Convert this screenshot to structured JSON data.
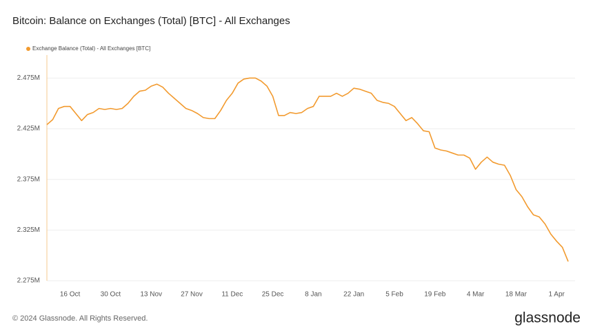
{
  "chart_data": {
    "type": "line",
    "title": "Bitcoin: Balance on Exchanges (Total) [BTC] - All Exchanges",
    "x": [
      "8 Oct",
      "10 Oct",
      "12 Oct",
      "14 Oct",
      "16 Oct",
      "18 Oct",
      "20 Oct",
      "22 Oct",
      "24 Oct",
      "26 Oct",
      "28 Oct",
      "30 Oct",
      "1 Nov",
      "3 Nov",
      "5 Nov",
      "7 Nov",
      "9 Nov",
      "11 Nov",
      "13 Nov",
      "15 Nov",
      "17 Nov",
      "19 Nov",
      "21 Nov",
      "23 Nov",
      "25 Nov",
      "27 Nov",
      "29 Nov",
      "1 Dec",
      "3 Dec",
      "5 Dec",
      "7 Dec",
      "9 Dec",
      "11 Dec",
      "13 Dec",
      "15 Dec",
      "17 Dec",
      "19 Dec",
      "21 Dec",
      "23 Dec",
      "25 Dec",
      "27 Dec",
      "29 Dec",
      "31 Dec",
      "2 Jan",
      "4 Jan",
      "6 Jan",
      "8 Jan",
      "10 Jan",
      "12 Jan",
      "14 Jan",
      "16 Jan",
      "18 Jan",
      "20 Jan",
      "22 Jan",
      "24 Jan",
      "26 Jan",
      "28 Jan",
      "30 Jan",
      "1 Feb",
      "3 Feb",
      "5 Feb",
      "7 Feb",
      "9 Feb",
      "11 Feb",
      "13 Feb",
      "15 Feb",
      "17 Feb",
      "19 Feb",
      "21 Feb",
      "23 Feb",
      "25 Feb",
      "27 Feb",
      "29 Feb",
      "2 Mar",
      "4 Mar",
      "6 Mar",
      "8 Mar",
      "10 Mar",
      "12 Mar",
      "14 Mar",
      "16 Mar",
      "18 Mar",
      "20 Mar",
      "22 Mar",
      "24 Mar",
      "26 Mar",
      "28 Mar",
      "30 Mar",
      "1 Apr",
      "3 Apr",
      "5 Apr"
    ],
    "series": [
      {
        "name": "Exchange Balance (Total) - All Exchanges [BTC]",
        "color": "#f29a2e",
        "values": [
          2429000,
          2434000,
          2445000,
          2447000,
          2447000,
          2440000,
          2433000,
          2439000,
          2441000,
          2445000,
          2444000,
          2445000,
          2444000,
          2445000,
          2450000,
          2457000,
          2462000,
          2463000,
          2467000,
          2469000,
          2466000,
          2460000,
          2455000,
          2450000,
          2445000,
          2443000,
          2440000,
          2436000,
          2435000,
          2435000,
          2443000,
          2453000,
          2460000,
          2470000,
          2474000,
          2475000,
          2475000,
          2472000,
          2467000,
          2457000,
          2438000,
          2438000,
          2441000,
          2440000,
          2441000,
          2445000,
          2447000,
          2457000,
          2457000,
          2457000,
          2460000,
          2457000,
          2460000,
          2465000,
          2464000,
          2462000,
          2460000,
          2453000,
          2451000,
          2450000,
          2447000,
          2440000,
          2433000,
          2436000,
          2430000,
          2423000,
          2422000,
          2406000,
          2404000,
          2403000,
          2401000,
          2399000,
          2399000,
          2396000,
          2385000,
          2392000,
          2397000,
          2392000,
          2390000,
          2389000,
          2379000,
          2365000,
          2358000,
          2348000,
          2340000,
          2338000,
          2331000,
          2321000,
          2314000,
          2308000,
          2294000
        ]
      }
    ],
    "xticks": [
      "16 Oct",
      "30 Oct",
      "13 Nov",
      "27 Nov",
      "11 Dec",
      "25 Dec",
      "8 Jan",
      "22 Jan",
      "5 Feb",
      "19 Feb",
      "4 Mar",
      "18 Mar",
      "1 Apr"
    ],
    "ylim": [
      2275000,
      2495000
    ],
    "yticks": [
      {
        "value": 2275000,
        "label": "2.275M"
      },
      {
        "value": 2325000,
        "label": "2.325M"
      },
      {
        "value": 2375000,
        "label": "2.375M"
      },
      {
        "value": 2425000,
        "label": "2.425M"
      },
      {
        "value": 2475000,
        "label": "2.475M"
      }
    ],
    "grid": true,
    "legend": "top-left"
  },
  "footer": "© 2024 Glassnode. All Rights Reserved.",
  "brand": "glassnode"
}
